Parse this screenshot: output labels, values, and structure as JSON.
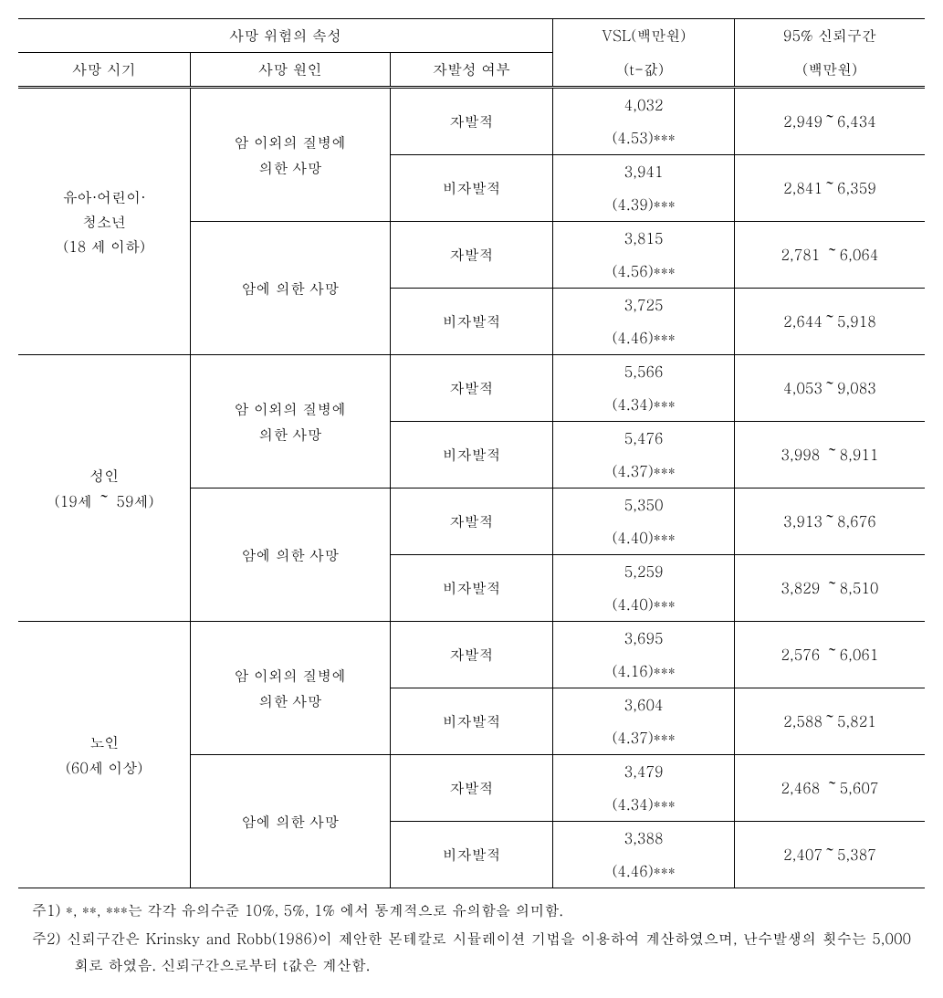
{
  "table": {
    "header": {
      "group_label": "사망 위험의 속성",
      "col_period": "사망 시기",
      "col_cause": "사망 원인",
      "col_voluntary": "자발성 여부",
      "col_vsl_line1": "VSL(백만원)",
      "col_vsl_line2": "(t-값)",
      "col_ci_line1": "95% 신뢰구간",
      "col_ci_line2": "(백만원)"
    },
    "periods": [
      {
        "label_line1": "유아·어린이·",
        "label_line2": "청소년",
        "label_line3": "(18 세 이하)",
        "causes": [
          {
            "label_line1": "암 이외의 질병에",
            "label_line2": "의한 사망",
            "rows": [
              {
                "voluntary": "자발적",
                "vsl": "4,032",
                "t": "(4.53)***",
                "ci": "2,949～6,434"
              },
              {
                "voluntary": "비자발적",
                "vsl": "3,941",
                "t": "(4.39)***",
                "ci": "2,841～6,359"
              }
            ]
          },
          {
            "label_line1": "암에 의한 사망",
            "label_line2": "",
            "rows": [
              {
                "voluntary": "자발적",
                "vsl": "3,815",
                "t": "(4.56)***",
                "ci": "2,781 ～6,064"
              },
              {
                "voluntary": "비자발적",
                "vsl": "3,725",
                "t": "(4.46)***",
                "ci": "2,644～5,918"
              }
            ]
          }
        ]
      },
      {
        "label_line1": "성인",
        "label_line2": "(19세 ～ 59세)",
        "label_line3": "",
        "causes": [
          {
            "label_line1": "암 이외의 질병에",
            "label_line2": "의한 사망",
            "rows": [
              {
                "voluntary": "자발적",
                "vsl": "5,566",
                "t": "(4.34)***",
                "ci": "4,053～9,083"
              },
              {
                "voluntary": "비자발적",
                "vsl": "5,476",
                "t": "(4.37)***",
                "ci": "3,998 ～8,911"
              }
            ]
          },
          {
            "label_line1": "암에 의한 사망",
            "label_line2": "",
            "rows": [
              {
                "voluntary": "자발적",
                "vsl": "5,350",
                "t": "(4.40)***",
                "ci": "3,913～8,676"
              },
              {
                "voluntary": "비자발적",
                "vsl": "5,259",
                "t": "(4.40)***",
                "ci": "3,829 ～8,510"
              }
            ]
          }
        ]
      },
      {
        "label_line1": "노인",
        "label_line2": "(60세 이상)",
        "label_line3": "",
        "causes": [
          {
            "label_line1": "암 이외의 질병에",
            "label_line2": "의한 사망",
            "rows": [
              {
                "voluntary": "자발적",
                "vsl": "3,695",
                "t": "(4.16)***",
                "ci": "2,576 ～6,061"
              },
              {
                "voluntary": "비자발적",
                "vsl": "3,604",
                "t": "(4.37)***",
                "ci": "2,588～5,821"
              }
            ]
          },
          {
            "label_line1": "암에 의한 사망",
            "label_line2": "",
            "rows": [
              {
                "voluntary": "자발적",
                "vsl": "3,479",
                "t": "(4.34)***",
                "ci": "2,468 ～5,607"
              },
              {
                "voluntary": "비자발적",
                "vsl": "3,388",
                "t": "(4.46)***",
                "ci": "2,407～5,387"
              }
            ]
          }
        ]
      }
    ]
  },
  "notes": {
    "note1": "주1) *, **, ***는 각각 유의수준 10%, 5%, 1% 에서 통계적으로 유의함을 의미함.",
    "note2": "주2) 신뢰구간은 Krinsky and Robb(1986)이 제안한 몬테칼로 시뮬레이션 기법을 이용하여 계산하였으며, 난수발생의 횟수는 5,000회로 하였음. 신뢰구간으로부터 t값은 계산함."
  },
  "style": {
    "background_color": "#ffffff",
    "text_color": "#000000",
    "border_color": "#000000",
    "font_size_pt": 12,
    "font_family": "Batang / Malgun Gothic (serif)",
    "col_widths_pct": [
      19,
      22,
      18,
      20,
      21
    ],
    "header_double_line": true
  }
}
